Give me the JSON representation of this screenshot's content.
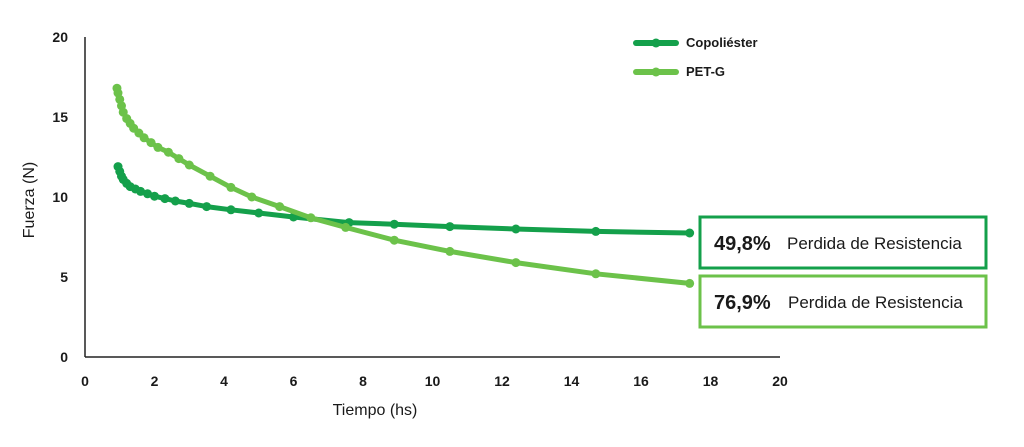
{
  "chart_data": {
    "type": "line",
    "title": "",
    "xlabel": "Tiempo (hs)",
    "ylabel": "Fuerza (N)",
    "xlim": [
      0,
      20
    ],
    "ylim": [
      0,
      20
    ],
    "x_ticks": [
      "0",
      "2",
      "4",
      "6",
      "8",
      "10",
      "12",
      "14",
      "16",
      "18",
      "20"
    ],
    "y_ticks": [
      "0",
      "5",
      "10",
      "15",
      "20"
    ],
    "grid": false,
    "legend_position": "top-right",
    "series": [
      {
        "name": "Copoliéster",
        "color": "#14a04b",
        "x": [
          0.95,
          1.0,
          1.05,
          1.1,
          1.2,
          1.3,
          1.45,
          1.6,
          1.8,
          2.0,
          2.3,
          2.6,
          3.0,
          3.5,
          4.2,
          5.0,
          6.0,
          7.6,
          8.9,
          10.5,
          12.4,
          14.7,
          17.4
        ],
        "y": [
          11.9,
          11.6,
          11.3,
          11.1,
          10.85,
          10.65,
          10.5,
          10.35,
          10.2,
          10.05,
          9.9,
          9.75,
          9.6,
          9.4,
          9.2,
          9.0,
          8.75,
          8.4,
          8.3,
          8.15,
          8.0,
          7.85,
          7.75
        ]
      },
      {
        "name": "PET-G",
        "color": "#6cc24a",
        "x": [
          0.92,
          0.95,
          1.0,
          1.05,
          1.1,
          1.2,
          1.3,
          1.4,
          1.55,
          1.7,
          1.9,
          2.1,
          2.4,
          2.7,
          3.0,
          3.6,
          4.2,
          4.8,
          5.6,
          6.5,
          7.5,
          8.9,
          10.5,
          12.4,
          14.7,
          17.4
        ],
        "y": [
          16.8,
          16.5,
          16.1,
          15.7,
          15.3,
          14.9,
          14.6,
          14.3,
          14.0,
          13.7,
          13.4,
          13.1,
          12.8,
          12.4,
          12.0,
          11.3,
          10.6,
          10.0,
          9.4,
          8.7,
          8.1,
          7.3,
          6.6,
          5.9,
          5.2,
          4.6
        ]
      }
    ],
    "annotations": [
      {
        "percent": "49,8%",
        "text": "Perdida de Resistencia",
        "color": "#14a04b"
      },
      {
        "percent": "76,9%",
        "text": "Perdida de Resistencia",
        "color": "#6cc24a"
      }
    ]
  }
}
